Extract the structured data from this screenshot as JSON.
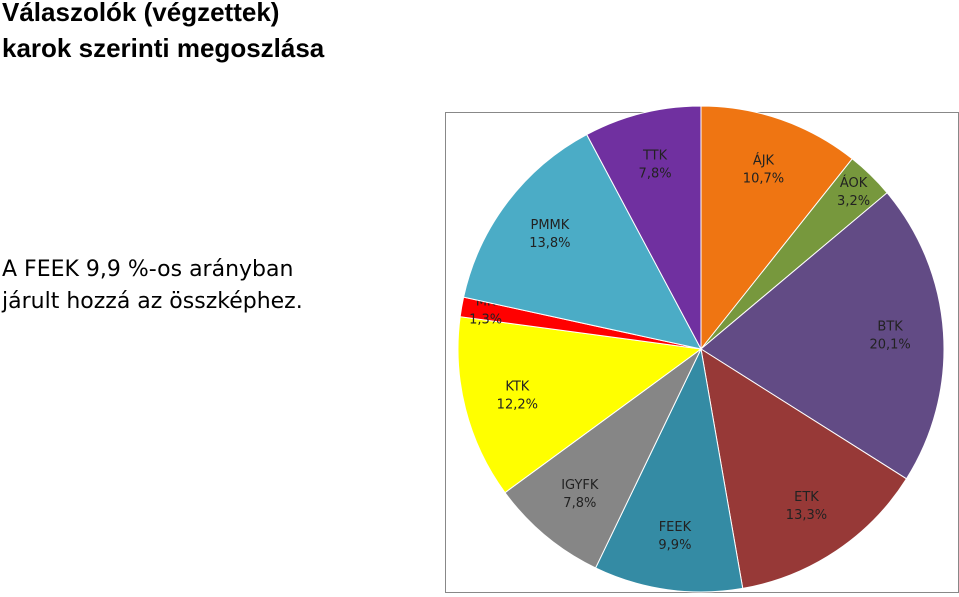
{
  "chart_data": {
    "type": "pie",
    "title": [
      "Válaszolók (végzettek)",
      "karok szerinti megoszlása"
    ],
    "annotation": [
      "A FEEK 9,9 %-os arányban",
      "járult hozzá az összképhez."
    ],
    "categories": [
      "ÁJK",
      "ÁOK",
      "BTK",
      "ETK",
      "FEEK",
      "IGYFK",
      "KTK",
      "MK",
      "PMMK",
      "TTK"
    ],
    "values": [
      10.7,
      3.2,
      20.1,
      13.3,
      9.9,
      7.8,
      12.2,
      1.3,
      13.8,
      7.8
    ],
    "value_labels": [
      "10,7%",
      "3,2%",
      "20,1%",
      "13,3%",
      "9,9%",
      "7,8%",
      "12,2%",
      "1,3%",
      "13,8%",
      "7,8%"
    ],
    "colors": [
      "#ef7512",
      "#77983d",
      "#624b85",
      "#973937",
      "#348ba4",
      "#868686",
      "#ffff00",
      "#ff0000",
      "#4bacc6",
      "#7030a0"
    ]
  }
}
